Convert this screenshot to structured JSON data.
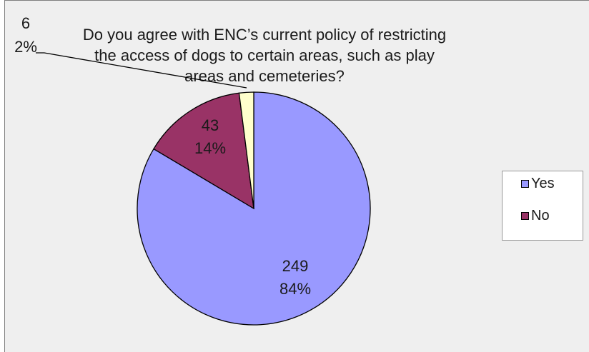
{
  "chart_data": {
    "type": "pie",
    "title": "Do you agree with ENC’s current policy of restricting\nthe access of dogs to certain areas, such as play\nareas and cemeteries?",
    "slices": [
      {
        "label": "Yes",
        "value": 249,
        "percent": "84%",
        "color": "#9999ff"
      },
      {
        "label": "No",
        "value": 43,
        "percent": "14%",
        "color": "#993366"
      },
      {
        "label": "",
        "value": 6,
        "percent": "2%",
        "color": "#ffffcc"
      }
    ],
    "legend": {
      "placement": "right",
      "entries": [
        "Yes",
        "No"
      ]
    }
  }
}
